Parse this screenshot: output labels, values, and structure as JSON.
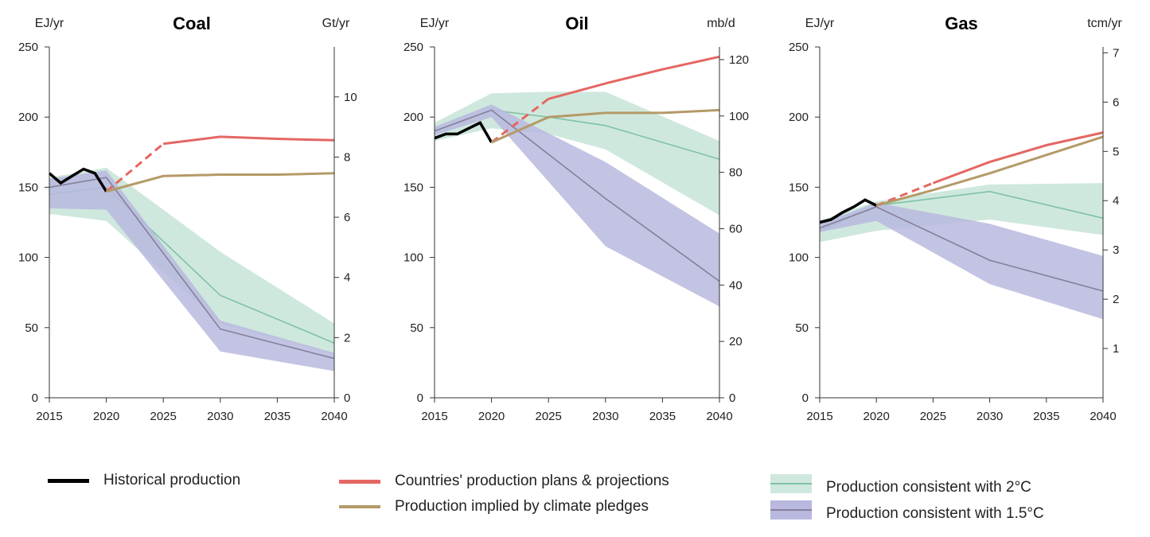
{
  "colors": {
    "historical": "#000000",
    "plans": "#e46763",
    "pledges": "#b49a68",
    "band2c": "#cfe8dd",
    "line2c": "#7fc2a6",
    "band15c": "#b9b8df",
    "line15c": "#858099"
  },
  "chart_data": [
    {
      "type": "line",
      "title": "Coal",
      "ylabel_left": "EJ/yr",
      "ylabel_right": "Gt/yr",
      "xlim": [
        2015,
        2040
      ],
      "ylim": [
        0,
        250
      ],
      "x_ticks": [
        2015,
        2020,
        2025,
        2030,
        2035,
        2040
      ],
      "y_ticks": [
        0,
        50,
        100,
        150,
        200,
        250
      ],
      "right_axis": {
        "ylim": [
          0,
          11.66
        ],
        "ticks": [
          0,
          2,
          4,
          6,
          8,
          10
        ]
      },
      "series": [
        {
          "name": "Historical production",
          "style": "historical",
          "x": [
            2015,
            2016,
            2017,
            2018,
            2019,
            2020
          ],
          "y": [
            160,
            153,
            158,
            163,
            160,
            147
          ]
        },
        {
          "name": "Countries' production plans & projections",
          "style": "plans",
          "x": [
            2020,
            2025,
            2030,
            2035,
            2040
          ],
          "y": [
            147,
            181,
            186,
            184.5,
            183.5
          ],
          "dashed_until": 2025
        },
        {
          "name": "Production implied by climate pledges",
          "style": "pledges",
          "x": [
            2020,
            2025,
            2030,
            2035,
            2040
          ],
          "y": [
            147,
            158,
            159,
            159,
            160
          ]
        }
      ],
      "bands": [
        {
          "name": "Production consistent with 2°C",
          "style": "2c",
          "x": [
            2015,
            2020,
            2030,
            2040
          ],
          "lower": [
            131,
            126,
            53,
            31
          ],
          "upper": [
            157,
            164,
            104,
            53
          ],
          "median": [
            145,
            150,
            73,
            39
          ]
        },
        {
          "name": "Production consistent with 1.5°C",
          "style": "15c",
          "x": [
            2015,
            2020,
            2030,
            2040
          ],
          "lower": [
            135,
            134,
            33,
            19
          ],
          "upper": [
            156,
            162,
            55,
            32
          ],
          "median": [
            150,
            157,
            49,
            28
          ]
        }
      ]
    },
    {
      "type": "line",
      "title": "Oil",
      "ylabel_left": "EJ/yr",
      "ylabel_right": "mb/d",
      "xlim": [
        2015,
        2040
      ],
      "ylim": [
        0,
        250
      ],
      "x_ticks": [
        2015,
        2020,
        2025,
        2030,
        2035,
        2040
      ],
      "y_ticks": [
        0,
        50,
        100,
        150,
        200,
        250
      ],
      "right_axis": {
        "ylim": [
          0,
          124.5
        ],
        "ticks": [
          0,
          20,
          40,
          60,
          80,
          100,
          120
        ]
      },
      "series": [
        {
          "name": "Historical production",
          "style": "historical",
          "x": [
            2015,
            2016,
            2017,
            2018,
            2019,
            2020
          ],
          "y": [
            185,
            188,
            188,
            192,
            196,
            182
          ]
        },
        {
          "name": "Countries' production plans & projections",
          "style": "plans",
          "x": [
            2020,
            2025,
            2030,
            2035,
            2040
          ],
          "y": [
            182,
            213,
            224,
            234,
            243
          ],
          "dashed_until": 2025
        },
        {
          "name": "Production implied by climate pledges",
          "style": "pledges",
          "x": [
            2020,
            2025,
            2030,
            2035,
            2040
          ],
          "y": [
            182,
            200,
            203,
            203,
            205
          ]
        }
      ],
      "bands": [
        {
          "name": "Production consistent with 2°C",
          "style": "2c",
          "x": [
            2015,
            2020,
            2025,
            2030,
            2040
          ],
          "lower": [
            183,
            192,
            188,
            177,
            130
          ],
          "upper": [
            196,
            217,
            218,
            218,
            183
          ],
          "median": [
            190,
            205,
            200,
            194,
            170
          ]
        },
        {
          "name": "Production consistent with 1.5°C",
          "style": "15c",
          "x": [
            2015,
            2020,
            2030,
            2040
          ],
          "lower": [
            187,
            200,
            108,
            65
          ],
          "upper": [
            193,
            209,
            168,
            117
          ],
          "median": [
            190,
            205,
            142,
            83
          ]
        }
      ]
    },
    {
      "type": "line",
      "title": "Gas",
      "ylabel_left": "EJ/yr",
      "ylabel_right": "tcm/yr",
      "xlim": [
        2015,
        2040
      ],
      "ylim": [
        0,
        250
      ],
      "x_ticks": [
        2015,
        2020,
        2025,
        2030,
        2035,
        2040
      ],
      "y_ticks": [
        0,
        50,
        100,
        150,
        200,
        250
      ],
      "right_axis": {
        "ylim": [
          0,
          7.12
        ],
        "ticks": [
          1,
          2,
          3,
          4,
          5,
          6,
          7
        ]
      },
      "series": [
        {
          "name": "Historical production",
          "style": "historical",
          "x": [
            2015,
            2016,
            2017,
            2018,
            2019,
            2020
          ],
          "y": [
            125,
            127,
            132,
            136,
            141,
            137
          ]
        },
        {
          "name": "Countries' production plans & projections",
          "style": "plans",
          "x": [
            2020,
            2025,
            2030,
            2035,
            2040
          ],
          "y": [
            137,
            153,
            168,
            180,
            189
          ],
          "dashed_until": 2025
        },
        {
          "name": "Production implied by climate pledges",
          "style": "pledges",
          "x": [
            2020,
            2025,
            2030,
            2035,
            2040
          ],
          "y": [
            137,
            148,
            160,
            173,
            186
          ]
        }
      ],
      "bands": [
        {
          "name": "Production consistent with 2°C",
          "style": "2c",
          "x": [
            2015,
            2020,
            2030,
            2040
          ],
          "lower": [
            111,
            119,
            127,
            116
          ],
          "upper": [
            126,
            140,
            152,
            153
          ],
          "median": [
            119,
            137,
            147,
            128
          ]
        },
        {
          "name": "Production consistent with 1.5°C",
          "style": "15c",
          "x": [
            2015,
            2020,
            2030,
            2040
          ],
          "lower": [
            118,
            126,
            81,
            56
          ],
          "upper": [
            124,
            139,
            124,
            101
          ],
          "median": [
            121,
            136,
            98,
            76
          ]
        }
      ]
    }
  ],
  "legend": {
    "historical": "Historical production",
    "plans": "Countries' production plans & projections",
    "pledges": "Production implied by climate pledges",
    "band2c": "Production consistent with 2°C",
    "band15c": "Production consistent with 1.5°C"
  }
}
